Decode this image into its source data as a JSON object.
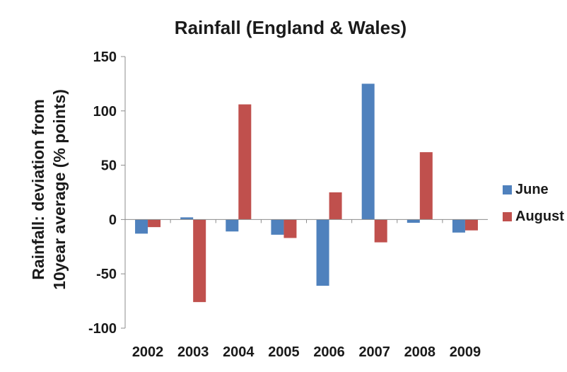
{
  "chart_data": {
    "type": "bar",
    "title": "Rainfall (England & Wales)",
    "ylabel_line1": "Rainfall: deviation from",
    "ylabel_line2": "10year average (% points)",
    "xlabel": "",
    "categories": [
      "2002",
      "2003",
      "2004",
      "2005",
      "2006",
      "2007",
      "2008",
      "2009"
    ],
    "series": [
      {
        "name": "June",
        "color": "#4F81BD",
        "values": [
          -13,
          2,
          -11,
          -14,
          -61,
          125,
          -3,
          -12
        ]
      },
      {
        "name": "August",
        "color": "#C0504D",
        "values": [
          -7,
          -76,
          106,
          -17,
          25,
          -21,
          62,
          -10
        ]
      }
    ],
    "ylim": [
      -100,
      150
    ],
    "yticks": [
      -100,
      -50,
      0,
      50,
      100,
      150
    ],
    "grid": false,
    "legend_position": "right"
  }
}
